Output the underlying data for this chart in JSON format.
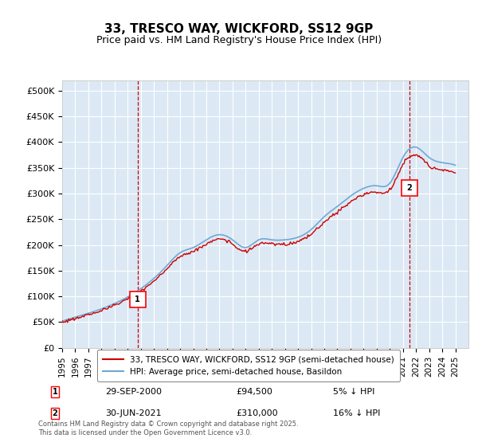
{
  "title": "33, TRESCO WAY, WICKFORD, SS12 9GP",
  "subtitle": "Price paid vs. HM Land Registry's House Price Index (HPI)",
  "background_color": "#dce9f5",
  "plot_bg_color": "#dce9f5",
  "ylabel_values": [
    0,
    50000,
    100000,
    150000,
    200000,
    250000,
    300000,
    350000,
    400000,
    450000,
    500000
  ],
  "ylim": [
    0,
    520000
  ],
  "xlim_start": 1995,
  "xlim_end": 2026,
  "hpi_color": "#6fa8d4",
  "price_color": "#cc0000",
  "vline_color": "#cc0000",
  "vline_style": "--",
  "marker1_x": 2000.75,
  "marker1_y": 94500,
  "marker1_label": "1",
  "marker2_x": 2021.5,
  "marker2_y": 310000,
  "marker2_label": "2",
  "legend_label_price": "33, TRESCO WAY, WICKFORD, SS12 9GP (semi-detached house)",
  "legend_label_hpi": "HPI: Average price, semi-detached house, Basildon",
  "annotation1": "1    29-SEP-2000         £94,500         5% ↓ HPI",
  "annotation2": "2    30-JUN-2021         £310,000       16% ↓ HPI",
  "footer": "Contains HM Land Registry data © Crown copyright and database right 2025.\nThis data is licensed under the Open Government Licence v3.0.",
  "xtick_years": [
    1995,
    1996,
    1997,
    1998,
    1999,
    2000,
    2001,
    2002,
    2003,
    2004,
    2005,
    2006,
    2007,
    2008,
    2009,
    2010,
    2011,
    2012,
    2013,
    2014,
    2015,
    2016,
    2017,
    2018,
    2019,
    2020,
    2021,
    2022,
    2023,
    2024,
    2025
  ]
}
